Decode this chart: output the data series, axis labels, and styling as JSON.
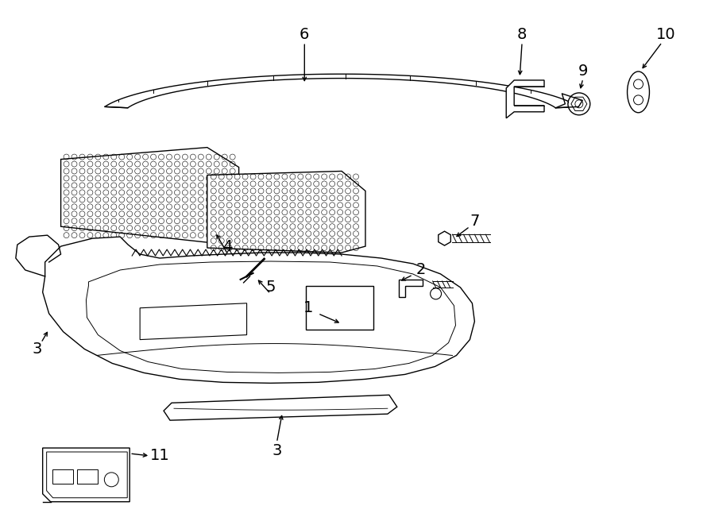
{
  "bg_color": "#ffffff",
  "line_color": "#000000",
  "fig_width": 9.0,
  "fig_height": 6.61,
  "lw": 1.0
}
